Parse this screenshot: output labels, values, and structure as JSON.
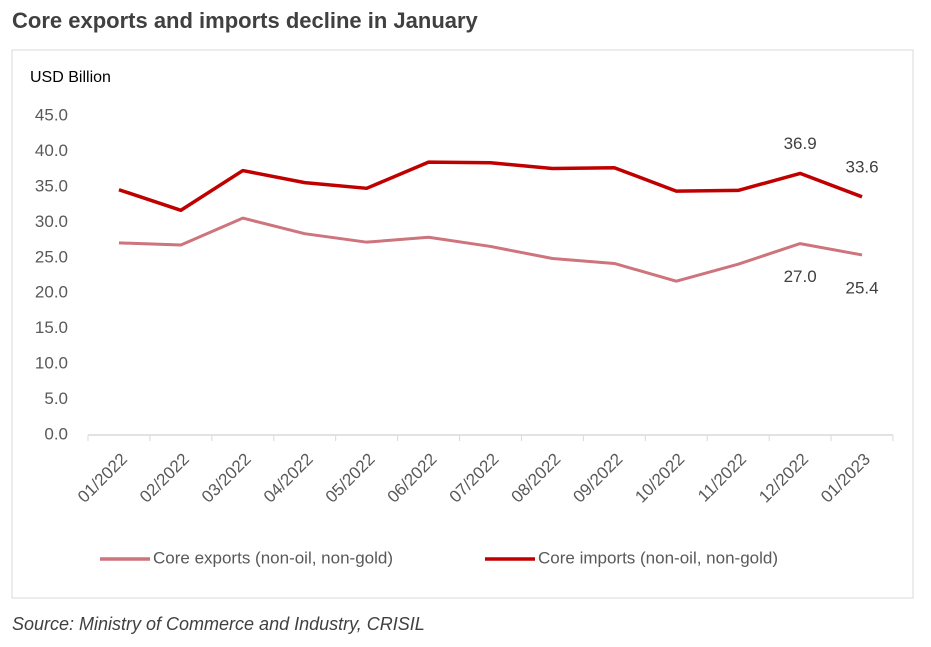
{
  "chart_data": {
    "type": "line",
    "title": "Core exports and imports decline in January",
    "y_axis_label": "USD Billion",
    "source": "Source: Ministry of Commerce and Industry, CRISIL",
    "categories": [
      "01/2022",
      "02/2022",
      "03/2022",
      "04/2022",
      "05/2022",
      "06/2022",
      "07/2022",
      "08/2022",
      "09/2022",
      "10/2022",
      "11/2022",
      "12/2022",
      "01/2023"
    ],
    "series": [
      {
        "name": "Core exports (non-oil, non-gold)",
        "color": "#cd747c",
        "values": [
          27.1,
          26.8,
          30.6,
          28.4,
          27.2,
          27.9,
          26.6,
          24.9,
          24.2,
          21.7,
          24.1,
          27.0,
          25.4
        ],
        "value_labels": [
          null,
          null,
          null,
          null,
          null,
          null,
          null,
          null,
          null,
          null,
          null,
          "27.0",
          "25.4"
        ]
      },
      {
        "name": "Core imports (non-oil, non-gold)",
        "color": "#c00000",
        "values": [
          34.6,
          31.7,
          37.3,
          35.6,
          34.8,
          38.5,
          38.4,
          37.6,
          37.7,
          34.4,
          34.5,
          36.9,
          33.6
        ],
        "value_labels": [
          null,
          null,
          null,
          null,
          null,
          null,
          null,
          null,
          null,
          null,
          null,
          "36.9",
          "33.6"
        ]
      }
    ],
    "ylim": [
      0,
      45
    ],
    "yticks": [
      {
        "value": 0,
        "label": "0.0"
      },
      {
        "value": 5,
        "label": "5.0"
      },
      {
        "value": 10,
        "label": "10.0"
      },
      {
        "value": 15,
        "label": "15.0"
      },
      {
        "value": 20,
        "label": "20.0"
      },
      {
        "value": 25,
        "label": "25.0"
      },
      {
        "value": 30,
        "label": "30.0"
      },
      {
        "value": 35,
        "label": "35.0"
      },
      {
        "value": 40,
        "label": "40.0"
      },
      {
        "value": 45,
        "label": "45.0"
      }
    ],
    "grid": false
  }
}
